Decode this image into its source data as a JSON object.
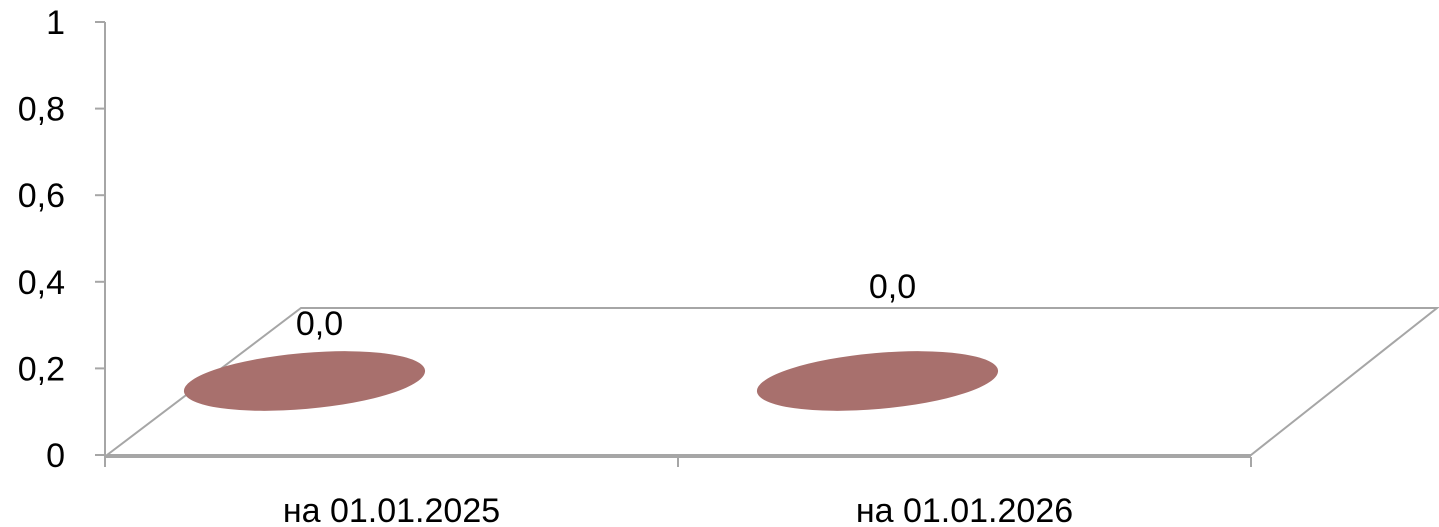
{
  "chart_data": {
    "type": "bar",
    "style": "3d-cylinder",
    "categories": [
      "на 01.01.2025",
      "на 01.01.2026"
    ],
    "series": [
      {
        "values": [
          0.0,
          0.0
        ],
        "data_labels": [
          "0,0",
          "0,0"
        ],
        "color": "#a8706d"
      }
    ],
    "ylim": [
      0,
      1
    ],
    "y_ticks": [
      0,
      0.2,
      0.4,
      0.6,
      0.8,
      1
    ],
    "y_tick_labels": [
      "0",
      "0,2",
      "0,4",
      "0,6",
      "0,8",
      "1"
    ],
    "grid": false,
    "legend": "none",
    "title": "",
    "xlabel": "",
    "ylabel": ""
  }
}
